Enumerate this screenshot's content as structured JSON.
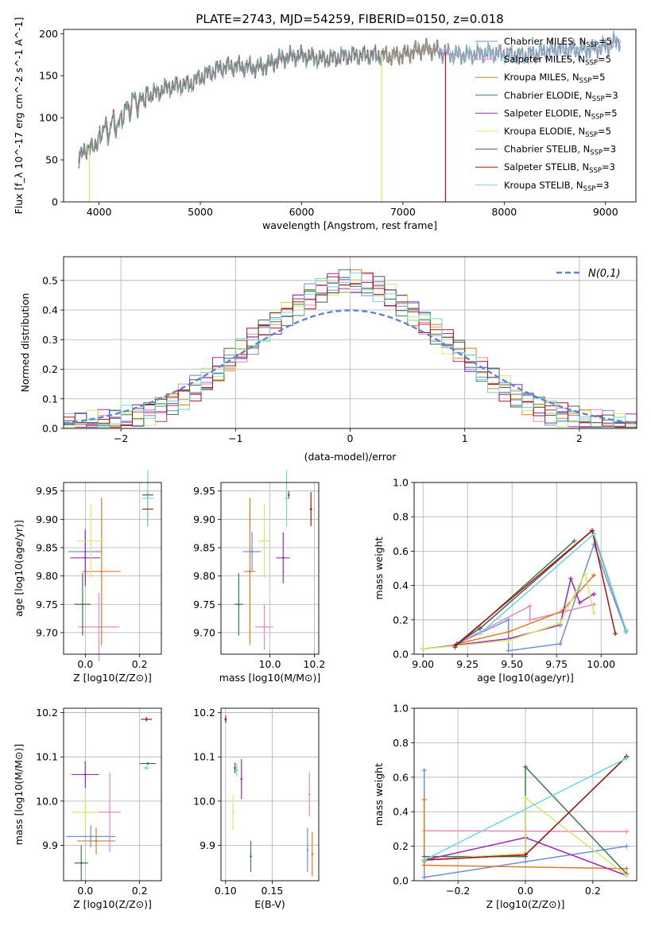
{
  "colors": [
    "#6495ed",
    "#ee82ee",
    "#d2691e",
    "#2e8b57",
    "#9932cc",
    "#ffff00",
    "#000000",
    "#b22222",
    "#00ced1"
  ],
  "line_colors": [
    "#6e8fd6",
    "#e68ac0",
    "#e07b1e",
    "#3d7a4d",
    "#9b2bb0",
    "#d6e86a",
    "#555555",
    "#a81515",
    "#6fd6dc"
  ],
  "chart_data": [
    {
      "type": "line",
      "title": "PLATE=2743, MJD=54259, FIBERID=0150, z=0.018",
      "xlabel": "wavelength [Angstrom, rest frame]",
      "ylabel": "Flux [f_λ 10^-17 erg cm^-2 s^-1 A^-1]",
      "xlim": [
        3650,
        9300
      ],
      "ylim": [
        0,
        205
      ],
      "xticks": [
        "4000",
        "5000",
        "6000",
        "7000",
        "8000",
        "9000"
      ],
      "yticks": [
        "0",
        "50",
        "100",
        "150",
        "200"
      ],
      "grid": false,
      "legend": "top-right",
      "spectrum_anchors": {
        "wavelength": [
          3800,
          3900,
          3950,
          4000,
          4100,
          4200,
          4300,
          4500,
          4700,
          4900,
          5000,
          5200,
          5400,
          5600,
          5800,
          6000,
          6200,
          6400,
          6600,
          6800,
          7000,
          7200,
          7400,
          7600,
          7800,
          8000,
          8200,
          8400,
          8600,
          8800,
          9000,
          9150
        ],
        "flux": [
          52,
          65,
          60,
          78,
          88,
          95,
          118,
          125,
          135,
          142,
          150,
          158,
          160,
          162,
          170,
          172,
          172,
          173,
          172,
          175,
          176,
          180,
          178,
          176,
          175,
          175,
          176,
          178,
          180,
          183,
          185,
          190
        ]
      },
      "series": [
        {
          "name": "Chabrier MILES, N_SSP=5",
          "label": "Chabrier MILES, N",
          "sub": "SSP",
          "suffix": "=5",
          "end": 9150
        },
        {
          "name": "Salpeter MILES, N_SSP=5",
          "label": "Salpeter MILES, N",
          "sub": "SSP",
          "suffix": "=5",
          "end": 9150
        },
        {
          "name": "Kroupa MILES, N_SSP=5",
          "label": "Kroupa MILES, N",
          "sub": "SSP",
          "suffix": "=5",
          "end": 7350
        },
        {
          "name": "Chabrier ELODIE, N_SSP=3",
          "label": "Chabrier ELODIE, N",
          "sub": "SSP",
          "suffix": "=3",
          "end": 6790
        },
        {
          "name": "Salpeter ELODIE, N_SSP=5",
          "label": "Salpeter ELODIE, N",
          "sub": "SSP",
          "suffix": "=5",
          "end": 6790
        },
        {
          "name": "Kroupa ELODIE, N_SSP=5",
          "label": "Kroupa ELODIE, N",
          "sub": "SSP",
          "suffix": "=5",
          "end": 6790
        },
        {
          "name": "Chabrier STELIB, N_SSP=3",
          "label": "Chabrier STELIB, N",
          "sub": "SSP",
          "suffix": "=3",
          "end": 9150
        },
        {
          "name": "Salpeter STELIB, N_SSP=3",
          "label": "Salpeter STELIB, N",
          "sub": "SSP",
          "suffix": "=3",
          "end": 7420
        },
        {
          "name": "Kroupa STELIB, N_SSP=3",
          "label": "Kroupa STELIB, N",
          "sub": "SSP",
          "suffix": "=3",
          "end": 9150
        }
      ],
      "drop_lines": [
        {
          "x": 3905,
          "color_index": 5
        },
        {
          "x": 6790,
          "color_index": 5
        },
        {
          "x": 7420,
          "color_index": 7
        }
      ]
    },
    {
      "type": "histogram",
      "xlabel": "(data-model)/error",
      "ylabel": "Normed distribution",
      "xlim": [
        -2.5,
        2.5
      ],
      "ylim": [
        0,
        0.58
      ],
      "xticks": [
        "−2",
        "−1",
        "0",
        "1",
        "2"
      ],
      "yticks": [
        "0.0",
        "0.1",
        "0.2",
        "0.3",
        "0.4",
        "0.5"
      ],
      "grid": true,
      "legend": "top-right",
      "normal_label": "N(0,1)",
      "bin_edges_start": -2.5,
      "bin_width": 0.1,
      "envelope_peak": 0.49,
      "envelope_sigma": 0.84
    },
    {
      "type": "scatter",
      "xlabel": "Z [log10(Z/Z⊙)]",
      "ylabel": "age  [log10(age/yr)]",
      "xlim": [
        -0.08,
        0.28
      ],
      "ylim": [
        9.662,
        9.965
      ],
      "xticks": [
        "0.0",
        "0.2"
      ],
      "yticks": [
        "9.70",
        "9.75",
        "9.80",
        "9.85",
        "9.90",
        "9.95"
      ],
      "grid": true,
      "points": [
        {
          "x": 0.0,
          "y": 9.843,
          "xerr": 0.062,
          "yerr": 0.035
        },
        {
          "x": 0.05,
          "y": 9.71,
          "xerr": 0.075,
          "yerr": 0.06
        },
        {
          "x": 0.06,
          "y": 9.808,
          "xerr": 0.07,
          "yerr": 0.13
        },
        {
          "x": -0.01,
          "y": 9.75,
          "xerr": 0.03,
          "yerr": 0.055
        },
        {
          "x": 0.0,
          "y": 9.832,
          "xerr": 0.055,
          "yerr": 0.05
        },
        {
          "x": 0.02,
          "y": 9.862,
          "xerr": 0.05,
          "yerr": 0.065
        },
        {
          "x": 0.23,
          "y": 9.943,
          "xerr": 0.02,
          "yerr": 0.005
        },
        {
          "x": 0.23,
          "y": 9.918,
          "xerr": 0.02,
          "yerr": 0.03
        },
        {
          "x": 0.23,
          "y": 9.937,
          "xerr": 0.02,
          "yerr": 0.05
        }
      ]
    },
    {
      "type": "scatter",
      "xlabel": "mass [log10(M/M⊙)]",
      "ylabel": "",
      "xlim": [
        9.78,
        10.22
      ],
      "ylim": [
        9.662,
        9.965
      ],
      "xticks": [
        "10.0",
        "10.2"
      ],
      "yticks": [
        "9.70",
        "9.75",
        "9.80",
        "9.85",
        "9.90",
        "9.95"
      ],
      "grid": true,
      "points": [
        {
          "x": 9.92,
          "y": 9.843,
          "xerr": 0.04,
          "yerr": 0.035
        },
        {
          "x": 9.975,
          "y": 9.71,
          "xerr": 0.04,
          "yerr": 0.04
        },
        {
          "x": 9.91,
          "y": 9.808,
          "xerr": 0.025,
          "yerr": 0.13
        },
        {
          "x": 9.86,
          "y": 9.75,
          "xerr": 0.02,
          "yerr": 0.055
        },
        {
          "x": 10.06,
          "y": 9.832,
          "xerr": 0.03,
          "yerr": 0.045
        },
        {
          "x": 9.975,
          "y": 9.862,
          "xerr": 0.025,
          "yerr": 0.065
        },
        {
          "x": 10.085,
          "y": 9.943,
          "xerr": 0.003,
          "yerr": 0.007
        },
        {
          "x": 10.185,
          "y": 9.918,
          "xerr": 0.005,
          "yerr": 0.03
        },
        {
          "x": 10.075,
          "y": 9.937,
          "xerr": 0.005,
          "yerr": 0.05
        }
      ]
    },
    {
      "type": "line",
      "xlabel": "age  [log10(age/yr)]",
      "ylabel": "mass weight",
      "xlim": [
        8.95,
        10.2
      ],
      "ylim": [
        0,
        1
      ],
      "xticks": [
        "9.00",
        "9.25",
        "9.50",
        "9.75",
        "10.00"
      ],
      "yticks": [
        "0.0",
        "0.2",
        "0.4",
        "0.6",
        "0.8",
        "1.0"
      ],
      "grid": true,
      "series": [
        {
          "x": [
            9.19,
            9.48,
            9.48,
            9.77,
            9.96,
            10.14
          ],
          "y": [
            0.06,
            0.2,
            0.02,
            0.06,
            0.64,
            0.13
          ]
        },
        {
          "x": [
            9.19,
            9.6,
            9.6,
            9.8,
            9.96
          ],
          "y": [
            0.06,
            0.28,
            0.2,
            0.25,
            0.29
          ]
        },
        {
          "x": [
            9.19,
            9.48,
            9.78,
            9.96
          ],
          "y": [
            0.06,
            0.13,
            0.25,
            0.46
          ]
        },
        {
          "x": [
            9.18,
            9.85
          ],
          "y": [
            0.04,
            0.66
          ]
        },
        {
          "x": [
            9.0,
            9.48,
            9.77,
            9.83,
            9.88,
            9.96
          ],
          "y": [
            0.03,
            0.09,
            0.17,
            0.44,
            0.3,
            0.35
          ]
        },
        {
          "x": [
            9.0,
            9.48,
            9.77,
            9.91,
            9.96
          ],
          "y": [
            0.03,
            0.08,
            0.18,
            0.47,
            0.24
          ]
        },
        {
          "x": [
            9.19,
            9.32,
            9.95,
            10.14
          ],
          "y": [
            0.06,
            0.15,
            0.72,
            0.14
          ]
        },
        {
          "x": [
            9.18,
            9.95,
            10.08
          ],
          "y": [
            0.05,
            0.72,
            0.12
          ]
        },
        {
          "x": [
            9.32,
            9.96,
            10.14
          ],
          "y": [
            0.12,
            0.7,
            0.14
          ]
        }
      ]
    },
    {
      "type": "scatter",
      "xlabel": "Z [log10(Z/Z⊙)]",
      "ylabel": "mass [log10(M/M⊙)]",
      "xlim": [
        -0.08,
        0.28
      ],
      "ylim": [
        9.82,
        10.21
      ],
      "xticks": [
        "0.0",
        "0.2"
      ],
      "yticks": [
        "9.9",
        "10.0",
        "10.1",
        "10.2"
      ],
      "grid": true,
      "points": [
        {
          "x": 0.02,
          "y": 9.92,
          "xerr": 0.09,
          "yerr": 0.025
        },
        {
          "x": 0.09,
          "y": 9.975,
          "xerr": 0.04,
          "yerr": 0.09
        },
        {
          "x": 0.04,
          "y": 9.91,
          "xerr": 0.07,
          "yerr": 0.03
        },
        {
          "x": -0.015,
          "y": 9.86,
          "xerr": 0.025,
          "yerr": 0.04
        },
        {
          "x": 0.0,
          "y": 10.06,
          "xerr": 0.05,
          "yerr": 0.03
        },
        {
          "x": 0.0,
          "y": 9.975,
          "xerr": 0.05,
          "yerr": 0.04
        },
        {
          "x": 0.23,
          "y": 10.085,
          "xerr": 0.03,
          "yerr": 0.003
        },
        {
          "x": 0.225,
          "y": 10.185,
          "xerr": 0.02,
          "yerr": 0.005
        },
        {
          "x": 0.225,
          "y": 10.075,
          "xerr": 0.01,
          "yerr": 0.005
        }
      ]
    },
    {
      "type": "scatter",
      "xlabel": "E(B-V)",
      "ylabel": "",
      "xlim": [
        0.095,
        0.2
      ],
      "ylim": [
        9.82,
        10.21
      ],
      "xticks": [
        "0.10",
        "0.15"
      ],
      "yticks": [
        "9.9",
        "10.0",
        "10.1",
        "10.2"
      ],
      "grid": true,
      "points": [
        {
          "x": 0.188,
          "y": 9.89,
          "xerr": 0.0,
          "yerr": 0.05
        },
        {
          "x": 0.19,
          "y": 10.015,
          "xerr": 0.0,
          "yerr": 0.05
        },
        {
          "x": 0.193,
          "y": 9.88,
          "xerr": 0.0,
          "yerr": 0.05
        },
        {
          "x": 0.127,
          "y": 9.875,
          "xerr": 0.0,
          "yerr": 0.035
        },
        {
          "x": 0.117,
          "y": 10.05,
          "xerr": 0.0,
          "yerr": 0.045
        },
        {
          "x": 0.108,
          "y": 9.975,
          "xerr": 0.0,
          "yerr": 0.04
        },
        {
          "x": 0.11,
          "y": 10.075,
          "xerr": 0.0,
          "yerr": 0.012
        },
        {
          "x": 0.1,
          "y": 10.185,
          "xerr": 0.0,
          "yerr": 0.008
        },
        {
          "x": 0.112,
          "y": 10.07,
          "xerr": 0.0,
          "yerr": 0.015
        }
      ]
    },
    {
      "type": "line",
      "xlabel": "Z [log10(Z/Z⊙)]",
      "ylabel": "mass weight",
      "xlim": [
        -0.33,
        0.33
      ],
      "ylim": [
        0,
        1
      ],
      "xticks": [
        "−0.2",
        "0.0",
        "0.2"
      ],
      "yticks": [
        "0.0",
        "0.2",
        "0.4",
        "0.6",
        "0.8",
        "1.0"
      ],
      "grid": true,
      "series": [
        {
          "x": [
            -0.3,
            -0.3,
            0.0,
            0.3
          ],
          "y": [
            0.64,
            0.02,
            0.11,
            0.2
          ]
        },
        {
          "x": [
            -0.3,
            0.3
          ],
          "y": [
            0.29,
            0.285
          ]
        },
        {
          "x": [
            -0.3,
            -0.3,
            -0.3,
            0.3
          ],
          "y": [
            0.47,
            0.11,
            0.09,
            0.07
          ]
        },
        {
          "x": [
            -0.3,
            0.0,
            0.0,
            0.3
          ],
          "y": [
            0.14,
            0.14,
            0.66,
            0.04
          ]
        },
        {
          "x": [
            -0.3,
            0.0,
            0.3
          ],
          "y": [
            0.12,
            0.25,
            0.03
          ]
        },
        {
          "x": [
            -0.3,
            0.0,
            0.0,
            0.3
          ],
          "y": [
            0.12,
            0.16,
            0.48,
            0.03
          ]
        },
        {
          "x": [
            -0.3,
            0.0,
            0.3
          ],
          "y": [
            0.12,
            0.15,
            0.72
          ]
        },
        {
          "x": [
            -0.3,
            0.0,
            0.3
          ],
          "y": [
            0.12,
            0.15,
            0.72
          ]
        },
        {
          "x": [
            -0.3,
            0.3
          ],
          "y": [
            0.12,
            0.71
          ]
        }
      ]
    }
  ]
}
